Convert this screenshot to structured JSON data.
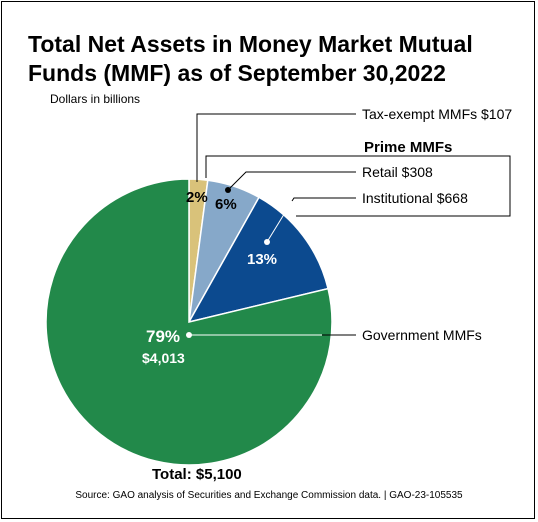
{
  "chart_data": {
    "type": "pie",
    "title_line1": "Total Net Assets in Money Market Mutual",
    "title_line2": "Funds (MMF) as of September 30,2022",
    "units_label": "Dollars in billions",
    "group_label": "Prime MMFs",
    "total_label": "Total: $5,100",
    "source": "Source: GAO analysis of Securities and Exchange Commission data.  |  GAO-23-105535",
    "slices": [
      {
        "name": "Tax-exempt MMFs $107",
        "value": 107,
        "pct_label": "2%",
        "color": "#d9c27a"
      },
      {
        "name": "Retail $308",
        "value": 308,
        "pct_label": "6%",
        "color": "#86a8c9"
      },
      {
        "name": "Institutional $668",
        "value": 668,
        "pct_label": "13%",
        "color": "#0c4a8f"
      },
      {
        "name": "Government MMFs",
        "value": 4013,
        "pct_label": "79%",
        "value_label": "$4,013",
        "color": "#22894a"
      }
    ],
    "total": 5100
  }
}
